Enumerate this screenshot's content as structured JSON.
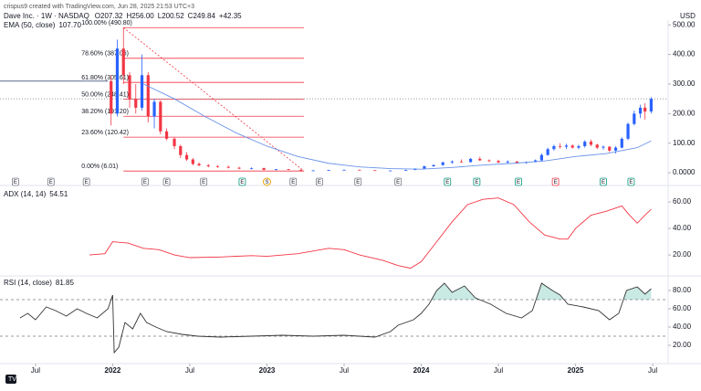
{
  "header": {
    "credit": "crispus9 created with TradingView.com, Jun 28, 2025 21:53 UTC+3"
  },
  "chart_data": [
    {
      "type": "candlestick",
      "title": "Dave Inc. · 1W · NASDAQ",
      "ohlc_labels": [
        "O207.32",
        "H256.00",
        "L200.52",
        "C249.84",
        "+42.35"
      ],
      "currency": "USD",
      "xlim": [
        2021.27,
        2025.6
      ],
      "ylim": [
        -12,
        510
      ],
      "yticks": [
        {
          "value": 0,
          "label": "0.0000"
        },
        {
          "value": 100,
          "label": "100.00"
        },
        {
          "value": 200,
          "label": "200.00"
        },
        {
          "value": 300,
          "label": "300.00"
        },
        {
          "value": 400,
          "label": "400.00"
        },
        {
          "value": 500,
          "label": "500.00"
        }
      ],
      "up_color": "#2962ff",
      "down_color": "#f23645",
      "x": [
        2021.99,
        2022.03,
        2022.07,
        2022.11,
        2022.15,
        2022.19,
        2022.23,
        2022.27,
        2022.31,
        2022.35,
        2022.4,
        2022.44,
        2022.48,
        2022.52,
        2022.56,
        2022.62,
        2022.68,
        2022.75,
        2022.82,
        2022.9,
        2022.98,
        2023.06,
        2023.14,
        2023.22,
        2023.3,
        2023.4,
        2023.5,
        2023.6,
        2023.7,
        2023.8,
        2023.9,
        2023.96,
        2024.02,
        2024.08,
        2024.14,
        2024.2,
        2024.26,
        2024.32,
        2024.38,
        2024.44,
        2024.5,
        2024.56,
        2024.62,
        2024.68,
        2024.74,
        2024.78,
        2024.82,
        2024.86,
        2024.9,
        2024.94,
        2024.98,
        2025.02,
        2025.06,
        2025.1,
        2025.14,
        2025.18,
        2025.22,
        2025.26,
        2025.3,
        2025.34,
        2025.38,
        2025.42,
        2025.45,
        2025.49
      ],
      "open": [
        310,
        200,
        420,
        330,
        250,
        220,
        330,
        190,
        240,
        140,
        115,
        90,
        60,
        45,
        30,
        25,
        22,
        20,
        17,
        14,
        16,
        10,
        12,
        10,
        7,
        8,
        9,
        10,
        8.5,
        7,
        7.5,
        9.5,
        14,
        22,
        26,
        35,
        38,
        36,
        47,
        42,
        40,
        35,
        38,
        33,
        36,
        42,
        60,
        80,
        90,
        88,
        92,
        85,
        90,
        105,
        95,
        85,
        88,
        75,
        85,
        115,
        165,
        200,
        220,
        207.32
      ],
      "high": [
        330,
        450,
        490.8,
        340,
        300,
        400,
        340,
        250,
        245,
        150,
        120,
        95,
        70,
        50,
        35,
        30,
        26,
        24,
        20,
        18,
        17,
        13,
        13,
        10.5,
        9,
        10,
        11,
        11,
        9,
        8,
        10,
        15,
        24,
        28,
        38,
        42,
        45,
        50,
        54,
        45,
        44,
        42,
        40,
        38,
        45,
        65,
        85,
        95,
        100,
        98,
        96,
        95,
        110,
        112,
        98,
        92,
        90,
        90,
        120,
        170,
        210,
        230,
        235,
        256
      ],
      "low": [
        160,
        190,
        300,
        220,
        200,
        210,
        170,
        150,
        130,
        110,
        80,
        50,
        40,
        25,
        22,
        18,
        17,
        15,
        12,
        11,
        8,
        8,
        9,
        6.01,
        6.5,
        7,
        8,
        8,
        6.5,
        6.2,
        7,
        9,
        13,
        20,
        24,
        30,
        34,
        35,
        40,
        36,
        33,
        32,
        30,
        31,
        35,
        40,
        58,
        75,
        82,
        80,
        82,
        80,
        85,
        90,
        80,
        78,
        70,
        65,
        82,
        110,
        160,
        185,
        180,
        200.52
      ],
      "close": [
        200,
        420,
        330,
        250,
        220,
        330,
        190,
        240,
        140,
        115,
        90,
        60,
        45,
        30,
        25,
        22,
        20,
        17,
        14,
        16,
        10,
        12,
        10,
        7,
        8,
        9,
        10,
        8.5,
        7,
        7.5,
        9.5,
        14,
        22,
        26,
        35,
        38,
        36,
        47,
        42,
        40,
        35,
        38,
        33,
        36,
        42,
        60,
        80,
        90,
        88,
        92,
        85,
        90,
        105,
        95,
        85,
        88,
        75,
        85,
        115,
        165,
        200,
        220,
        207,
        249.84
      ],
      "pre_listing": {
        "x": [
          2021.27,
          2021.97
        ],
        "values": [
          310,
          310
        ],
        "color": "#5d6b8a"
      },
      "ema": {
        "name": "EMA (50, close)",
        "color": "#6a93e8",
        "last_label": "107.70",
        "x": [
          2022.2,
          2022.4,
          2022.6,
          2022.8,
          2023.0,
          2023.2,
          2023.4,
          2023.6,
          2023.8,
          2024.0,
          2024.2,
          2024.4,
          2024.6,
          2024.8,
          2025.0,
          2025.2,
          2025.4,
          2025.49
        ],
        "values": [
          300,
          250,
          190,
          135,
          90,
          55,
          32,
          20,
          14,
          12,
          18,
          26,
          32,
          40,
          55,
          65,
          85,
          107.7
        ]
      },
      "fibonacci": {
        "color": "#f23645",
        "start": 2022.07,
        "end": 2023.24,
        "levels": [
          {
            "value": 490.8,
            "label": "100.00% (490.80)"
          },
          {
            "value": 387.06,
            "label": "78.60% (387.06)"
          },
          {
            "value": 305.61,
            "label": "61.80% (305.61)"
          },
          {
            "value": 248.41,
            "label": "50.00% (248.41)"
          },
          {
            "value": 191.2,
            "label": "38.20% (191.20)"
          },
          {
            "value": 120.42,
            "label": "23.60% (120.42)"
          },
          {
            "value": 6.01,
            "label": "0.00% (6.01)"
          }
        ]
      },
      "events": [
        {
          "x": 2021.37,
          "label": "E",
          "color": "#787b86"
        },
        {
          "x": 2021.6,
          "label": "E",
          "color": "#787b86"
        },
        {
          "x": 2021.83,
          "label": "E",
          "color": "#787b86"
        },
        {
          "x": 2022.21,
          "label": "E",
          "color": "#787b86"
        },
        {
          "x": 2022.35,
          "label": "E",
          "color": "#787b86"
        },
        {
          "x": 2022.59,
          "label": "E",
          "color": "#787b86"
        },
        {
          "x": 2022.84,
          "label": "E",
          "color": "#089981"
        },
        {
          "x": 2023.0,
          "label": "S",
          "color": "#f0a202"
        },
        {
          "x": 2023.17,
          "label": "E",
          "color": "#787b86"
        },
        {
          "x": 2023.34,
          "label": "E",
          "color": "#787b86"
        },
        {
          "x": 2023.59,
          "label": "E",
          "color": "#787b86"
        },
        {
          "x": 2023.85,
          "label": "E",
          "color": "#787b86"
        },
        {
          "x": 2024.17,
          "label": "E",
          "color": "#089981"
        },
        {
          "x": 2024.36,
          "label": "E",
          "color": "#089981"
        },
        {
          "x": 2024.63,
          "label": "E",
          "color": "#089981"
        },
        {
          "x": 2024.87,
          "label": "E",
          "color": "#f23645"
        },
        {
          "x": 2025.18,
          "label": "E",
          "color": "#089981"
        },
        {
          "x": 2025.36,
          "label": "E",
          "color": "#089981"
        }
      ]
    },
    {
      "type": "line",
      "title": "ADX (14, 14)",
      "last_label": "54.51",
      "color": "#f23645",
      "xlim": [
        2021.27,
        2025.6
      ],
      "ylim": [
        5.6,
        69
      ],
      "yticks": [
        {
          "value": 20,
          "label": "20.00"
        },
        {
          "value": 40,
          "label": "40.00"
        },
        {
          "value": 60,
          "label": "60.00"
        }
      ],
      "x": [
        2021.85,
        2021.95,
        2022.0,
        2022.1,
        2022.2,
        2022.3,
        2022.4,
        2022.5,
        2022.7,
        2022.9,
        2023.0,
        2023.2,
        2023.4,
        2023.5,
        2023.6,
        2023.75,
        2023.85,
        2023.93,
        2024.0,
        2024.1,
        2024.2,
        2024.3,
        2024.4,
        2024.5,
        2024.6,
        2024.7,
        2024.8,
        2024.9,
        2024.95,
        2025.0,
        2025.1,
        2025.2,
        2025.3,
        2025.35,
        2025.4,
        2025.45,
        2025.49
      ],
      "values": [
        20,
        21,
        30,
        29,
        25,
        24,
        20,
        18,
        18.5,
        19.5,
        19,
        21,
        25,
        24,
        20,
        16,
        12,
        10,
        15,
        30,
        45,
        58,
        62,
        63,
        58,
        45,
        35,
        32,
        32,
        40,
        50,
        53,
        57,
        50,
        44,
        50,
        54.51
      ]
    },
    {
      "type": "line",
      "title": "RSI (14, close)",
      "last_label": "81.85",
      "color": "#333333",
      "fill_color": "rgba(8,153,129,0.22)",
      "bands": [
        70,
        30
      ],
      "xlim": [
        2021.27,
        2025.6
      ],
      "ylim": [
        2,
        93
      ],
      "yticks": [
        {
          "value": 20,
          "label": "20.00"
        },
        {
          "value": 40,
          "label": "40.00"
        },
        {
          "value": 60,
          "label": "60.00"
        },
        {
          "value": 80,
          "label": "80.00"
        }
      ],
      "xticks": [
        {
          "value": 2021.5,
          "label": "Jul"
        },
        2022,
        {
          "value": 2022.5,
          "label": "Jul"
        },
        2023,
        {
          "value": 2023.5,
          "label": "Jul"
        },
        2024,
        {
          "value": 2024.5,
          "label": "Jul"
        },
        2025,
        {
          "value": 2025.5,
          "label": "Jul"
        }
      ],
      "x": [
        2021.4,
        2021.45,
        2021.5,
        2021.57,
        2021.63,
        2021.7,
        2021.77,
        2021.83,
        2021.9,
        2021.97,
        2022.0,
        2022.01,
        2022.04,
        2022.08,
        2022.13,
        2022.18,
        2022.22,
        2022.28,
        2022.35,
        2022.45,
        2022.55,
        2022.7,
        2022.9,
        2023.1,
        2023.3,
        2023.5,
        2023.7,
        2023.8,
        2023.85,
        2023.95,
        2024.0,
        2024.05,
        2024.1,
        2024.15,
        2024.2,
        2024.28,
        2024.35,
        2024.45,
        2024.55,
        2024.65,
        2024.72,
        2024.78,
        2024.85,
        2024.9,
        2024.95,
        2025.05,
        2025.15,
        2025.22,
        2025.28,
        2025.33,
        2025.4,
        2025.45,
        2025.49
      ],
      "values": [
        50,
        55,
        48,
        62,
        58,
        52,
        60,
        55,
        50,
        60,
        75,
        12,
        18,
        45,
        38,
        55,
        45,
        40,
        35,
        32,
        30,
        29,
        30,
        31,
        30,
        31,
        29,
        35,
        42,
        48,
        55,
        65,
        80,
        88,
        78,
        85,
        72,
        65,
        55,
        50,
        58,
        88,
        80,
        75,
        65,
        62,
        58,
        48,
        55,
        80,
        84,
        76,
        81.85
      ]
    }
  ]
}
